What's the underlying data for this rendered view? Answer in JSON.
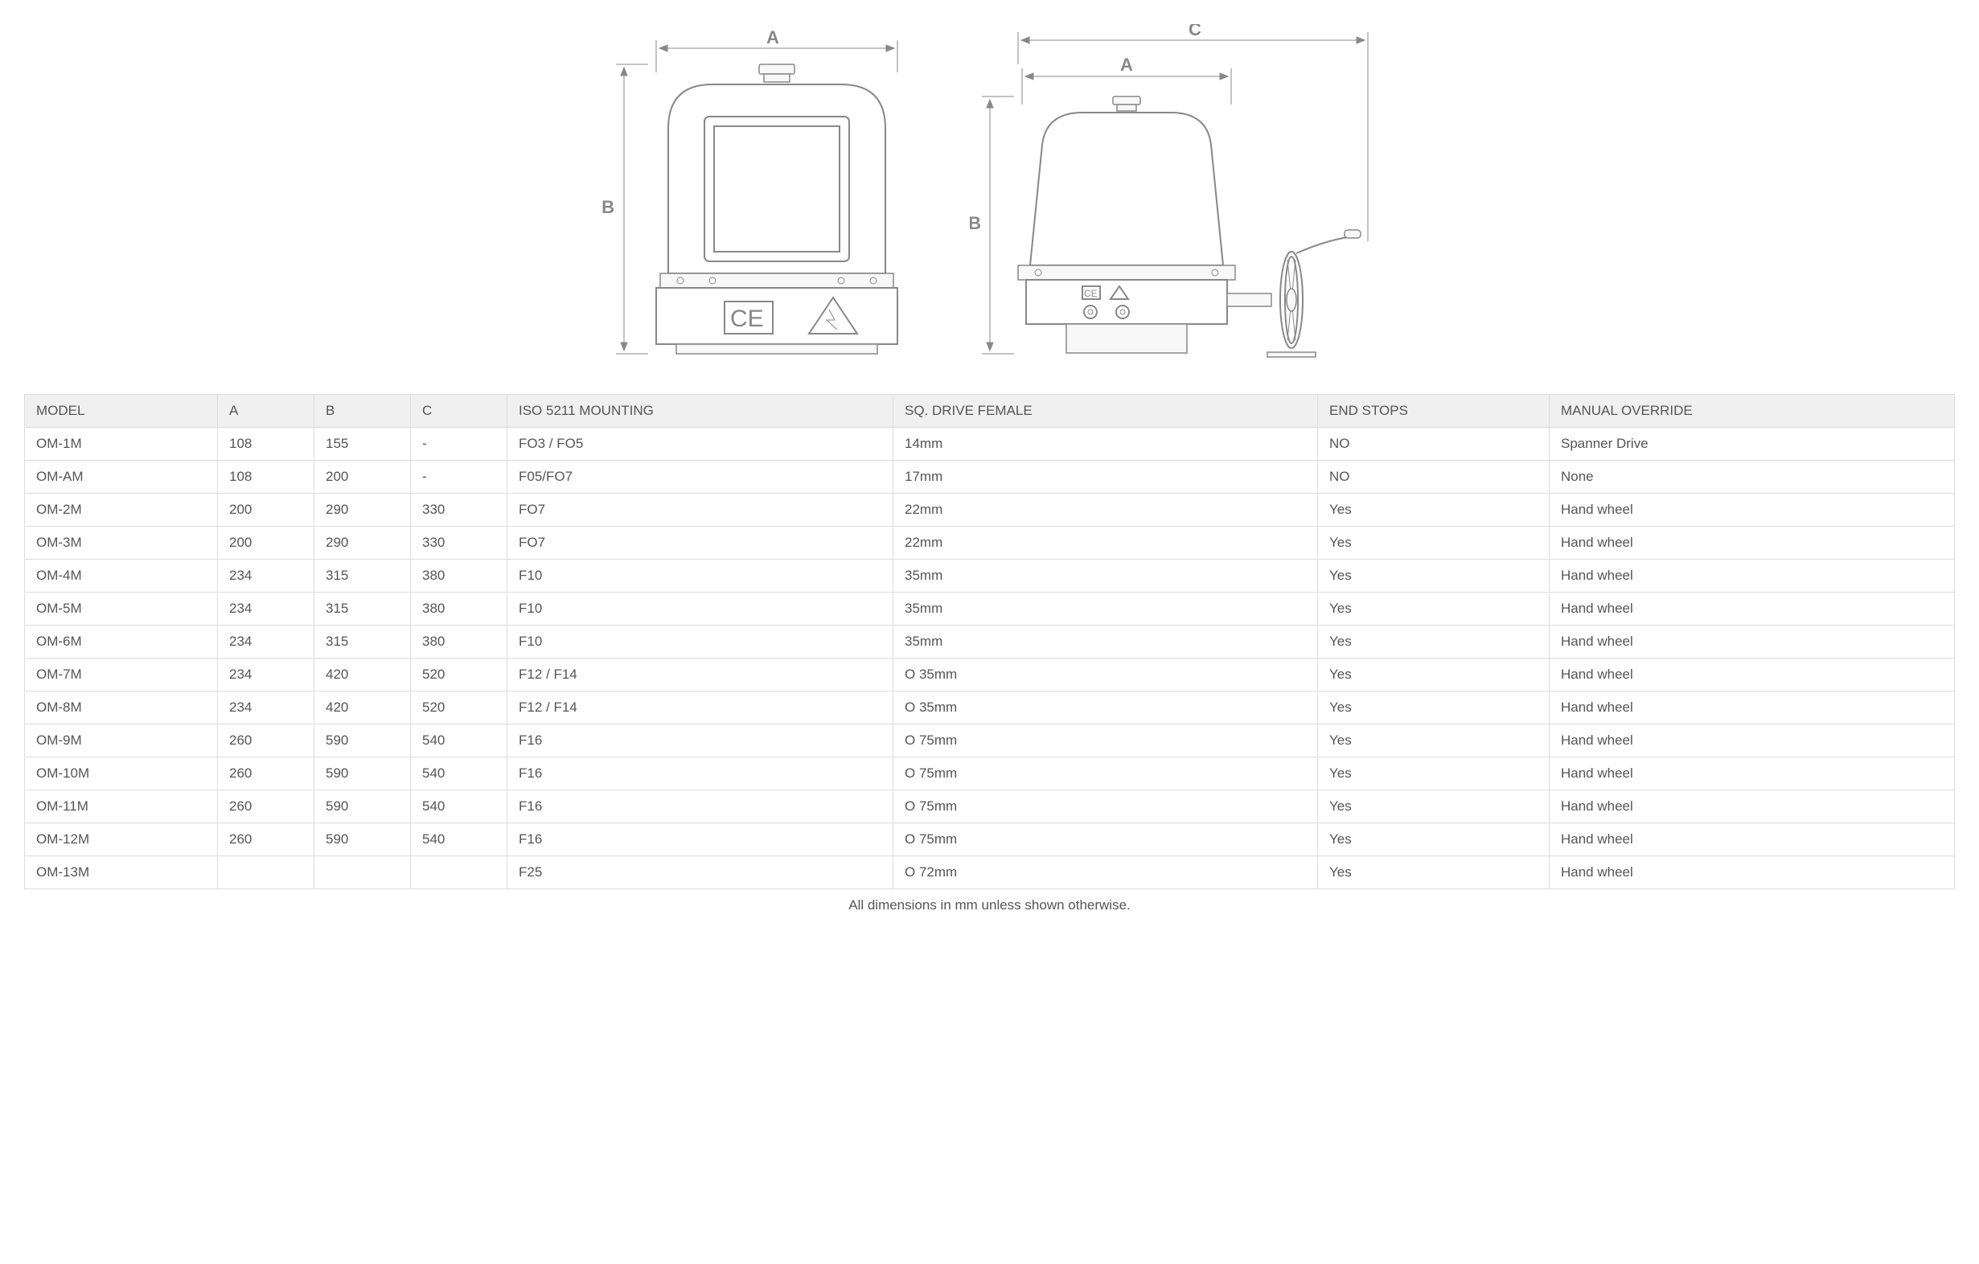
{
  "diagram": {
    "labels": {
      "A": "A",
      "B": "B",
      "C": "C"
    },
    "colors": {
      "line": "#888888",
      "fill": "#ffffff",
      "lightfill": "#f8f8f8"
    }
  },
  "table": {
    "columns": [
      "MODEL",
      "A",
      "B",
      "C",
      "ISO 5211 MOUNTING",
      "SQ. DRIVE FEMALE",
      "END STOPS",
      "MANUAL OVERRIDE"
    ],
    "col_widths_pct": [
      10,
      5,
      5,
      5,
      20,
      22,
      12,
      21
    ],
    "rows": [
      [
        "OM-1M",
        "108",
        "155",
        "-",
        "FO3 / FO5",
        "14mm",
        "NO",
        "Spanner Drive"
      ],
      [
        "OM-AM",
        "108",
        "200",
        "-",
        "F05/FO7",
        "17mm",
        "NO",
        "None"
      ],
      [
        "OM-2M",
        "200",
        "290",
        "330",
        "FO7",
        "22mm",
        "Yes",
        "Hand wheel"
      ],
      [
        "OM-3M",
        "200",
        "290",
        "330",
        "FO7",
        "22mm",
        "Yes",
        "Hand wheel"
      ],
      [
        "OM-4M",
        "234",
        "315",
        "380",
        "F10",
        "35mm",
        "Yes",
        "Hand wheel"
      ],
      [
        "OM-5M",
        "234",
        "315",
        "380",
        "F10",
        "35mm",
        "Yes",
        "Hand wheel"
      ],
      [
        "OM-6M",
        "234",
        "315",
        "380",
        "F10",
        "35mm",
        "Yes",
        "Hand wheel"
      ],
      [
        "OM-7M",
        "234",
        "420",
        "520",
        "F12 / F14",
        "O 35mm",
        "Yes",
        "Hand wheel"
      ],
      [
        "OM-8M",
        "234",
        "420",
        "520",
        "F12 / F14",
        "O 35mm",
        "Yes",
        "Hand wheel"
      ],
      [
        "OM-9M",
        "260",
        "590",
        "540",
        "F16",
        "O 75mm",
        "Yes",
        "Hand wheel"
      ],
      [
        "OM-10M",
        "260",
        "590",
        "540",
        "F16",
        "O 75mm",
        "Yes",
        "Hand wheel"
      ],
      [
        "OM-11M",
        "260",
        "590",
        "540",
        "F16",
        "O 75mm",
        "Yes",
        "Hand wheel"
      ],
      [
        "OM-12M",
        "260",
        "590",
        "540",
        "F16",
        "O 75mm",
        "Yes",
        "Hand wheel"
      ],
      [
        "OM-13M",
        "",
        "",
        "",
        "F25",
        "O 72mm",
        "Yes",
        "Hand wheel"
      ]
    ]
  },
  "footnote": "All dimensions in mm unless shown otherwise."
}
